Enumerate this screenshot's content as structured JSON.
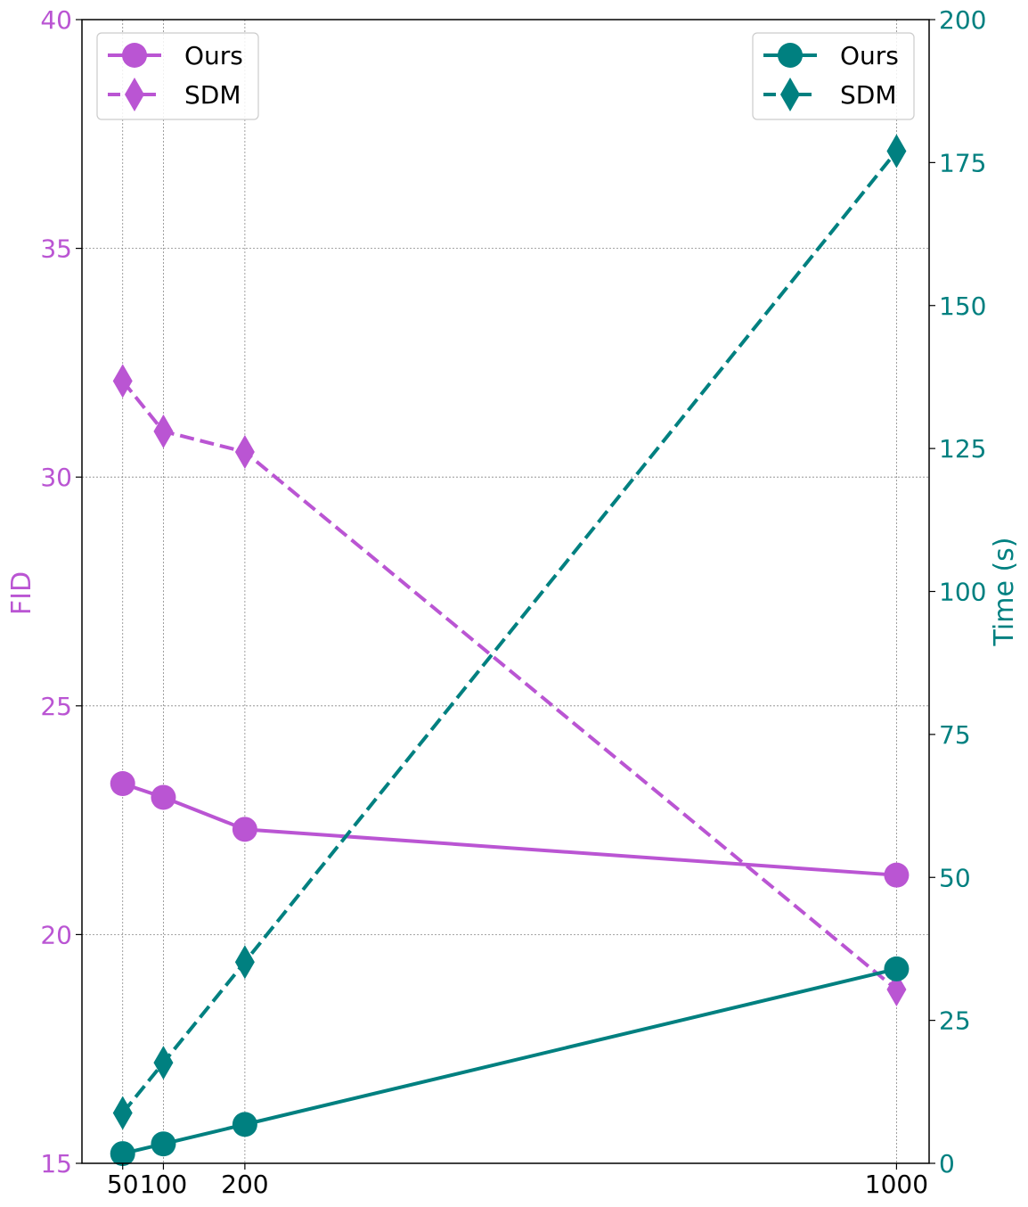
{
  "colors": {
    "fid": "#BA55D3",
    "time": "#008080",
    "grid": "#888888",
    "frame": "#000000"
  },
  "chart_data": {
    "type": "line",
    "x": [
      50,
      100,
      200,
      1000
    ],
    "x_tick_labels": [
      "50",
      "100",
      "200",
      "1000"
    ],
    "xlim": [
      0,
      1040
    ],
    "left_axis": {
      "label": "FID",
      "ylim": [
        15,
        40
      ],
      "ticks": [
        15,
        20,
        25,
        30,
        35,
        40
      ],
      "tick_labels": [
        "15",
        "20",
        "25",
        "30",
        "35",
        "40"
      ]
    },
    "right_axis": {
      "label": "Time (s)",
      "ylim": [
        0,
        200
      ],
      "ticks": [
        0,
        25,
        50,
        75,
        100,
        125,
        150,
        175,
        200
      ],
      "tick_labels": [
        "0",
        "25",
        "50",
        "75",
        "100",
        "125",
        "150",
        "175",
        "200"
      ]
    },
    "grid": true,
    "series": [
      {
        "name": "Ours",
        "axis": "left",
        "marker": "circle",
        "linestyle": "solid",
        "color_key": "fid",
        "values": [
          23.3,
          23.0,
          22.3,
          21.3
        ]
      },
      {
        "name": "SDM",
        "axis": "left",
        "marker": "diamond",
        "linestyle": "dashed",
        "color_key": "fid",
        "values": [
          32.1,
          31.0,
          30.55,
          18.8
        ]
      },
      {
        "name": "Ours",
        "axis": "right",
        "marker": "circle",
        "linestyle": "solid",
        "color_key": "time",
        "values": [
          1.7,
          3.4,
          6.8,
          34.0
        ]
      },
      {
        "name": "SDM",
        "axis": "right",
        "marker": "diamond",
        "linestyle": "dashed",
        "color_key": "time",
        "values": [
          8.8,
          17.6,
          35.2,
          177.0
        ]
      }
    ],
    "legends": [
      {
        "placement": "top-left",
        "entries": [
          "Ours",
          "SDM"
        ],
        "color_key": "fid"
      },
      {
        "placement": "top-right",
        "entries": [
          "Ours",
          "SDM"
        ],
        "color_key": "time"
      }
    ]
  }
}
